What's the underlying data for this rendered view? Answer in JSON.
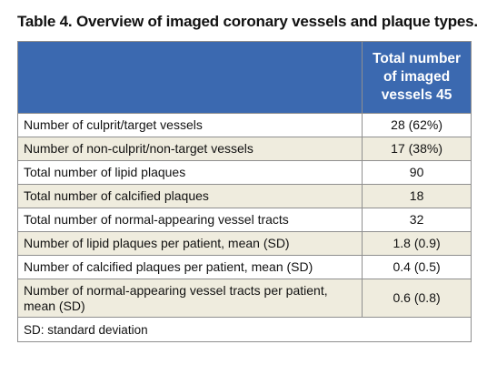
{
  "title": "Table 4. Overview of imaged coronary vessels and plaque types.",
  "header": {
    "col1": "",
    "col2": "Total number of imaged vessels 45"
  },
  "rows": [
    {
      "label": "Number of culprit/target vessels",
      "value": "28 (62%)"
    },
    {
      "label": "Number of non-culprit/non-target vessels",
      "value": "17 (38%)"
    },
    {
      "label": "Total number of lipid plaques",
      "value": "90"
    },
    {
      "label": "Total number of calcified plaques",
      "value": "18"
    },
    {
      "label": "Total number of normal-appearing vessel tracts",
      "value": "32"
    },
    {
      "label": "Number of lipid plaques per patient, mean (SD)",
      "value": "1.8 (0.9)"
    },
    {
      "label": "Number of calcified plaques per patient, mean (SD)",
      "value": "0.4 (0.5)"
    },
    {
      "label": "Number of normal-appearing vessel tracts per patient, mean (SD)",
      "value": "0.6 (0.8)"
    }
  ],
  "footnote": "SD: standard deviation",
  "colors": {
    "header_bg": "#3b69b0",
    "stripe_bg": "#efecde",
    "border": "#8f8f8f"
  }
}
